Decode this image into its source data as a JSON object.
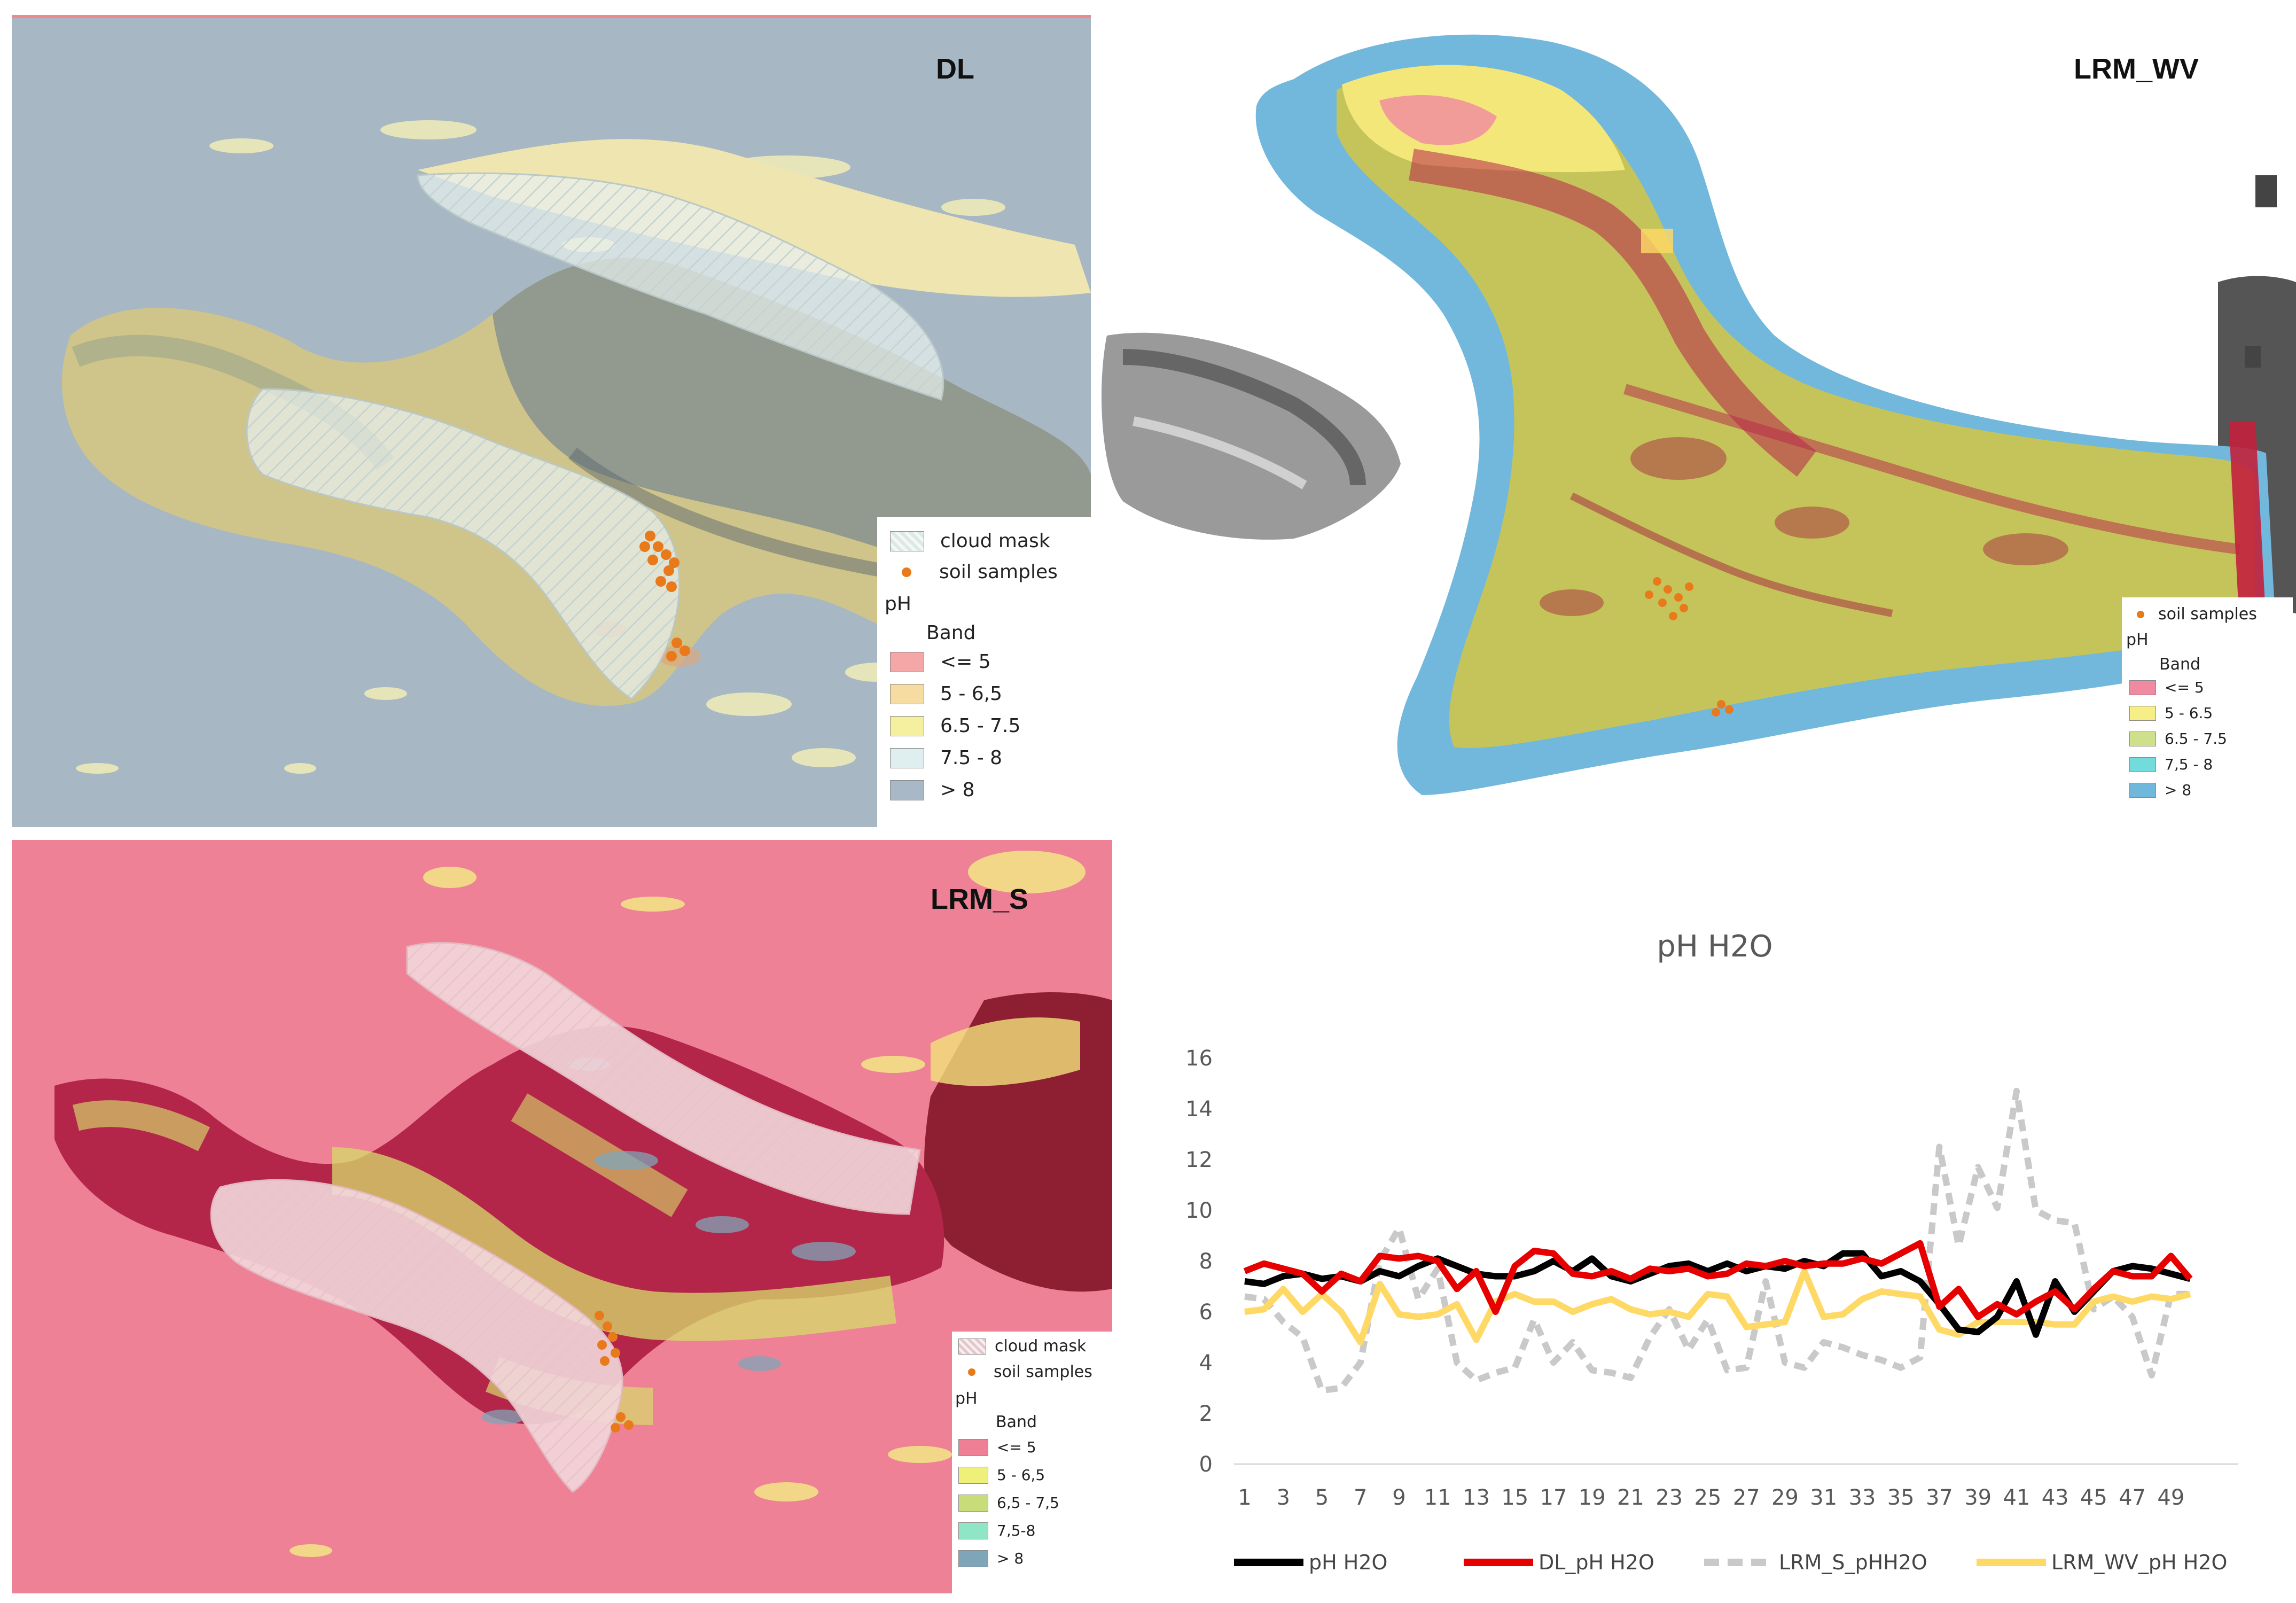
{
  "maps": {
    "dl": {
      "title": "DL",
      "legend": {
        "cloud_mask": "cloud mask",
        "soil_samples": "soil samples",
        "ph": "pH",
        "band": "Band",
        "classes": [
          {
            "label": "<= 5",
            "color": "#f5a6a6"
          },
          {
            "label": "5 - 6,5",
            "color": "#f7dca2"
          },
          {
            "label": "6.5 - 7.5",
            "color": "#f5f0a0"
          },
          {
            "label": "7.5 - 8",
            "color": "#dfeeee"
          },
          {
            "label": "> 8",
            "color": "#a8b8c6"
          }
        ]
      }
    },
    "lrm_wv": {
      "title": "LRM_WV",
      "legend": {
        "soil_samples": "soil samples",
        "ph": "pH",
        "band": "Band",
        "classes": [
          {
            "label": "<= 5",
            "color": "#f08aa0"
          },
          {
            "label": "5 - 6.5",
            "color": "#f6ef88"
          },
          {
            "label": "6.5 - 7.5",
            "color": "#cfe08a"
          },
          {
            "label": "7,5 - 8",
            "color": "#72dbdc"
          },
          {
            "label": "> 8",
            "color": "#6fb8dc"
          }
        ]
      }
    },
    "lrm_s": {
      "title": "LRM_S",
      "legend": {
        "cloud_mask": "cloud mask",
        "soil_samples": "soil samples",
        "ph": "pH",
        "band": "Band",
        "classes": [
          {
            "label": "<= 5",
            "color": "#ee7f94"
          },
          {
            "label": "5 - 6,5",
            "color": "#eef07a"
          },
          {
            "label": "6,5 - 7,5",
            "color": "#c9dc7a"
          },
          {
            "label": "7,5-8",
            "color": "#8fe6c6"
          },
          {
            "label": "> 8",
            "color": "#7fa6b8"
          }
        ]
      }
    }
  },
  "chart_data": {
    "type": "line",
    "title": "pH H2O",
    "x": [
      1,
      2,
      3,
      4,
      5,
      6,
      7,
      8,
      9,
      10,
      11,
      12,
      13,
      14,
      15,
      16,
      17,
      18,
      19,
      20,
      21,
      22,
      23,
      24,
      25,
      26,
      27,
      28,
      29,
      30,
      31,
      32,
      33,
      34,
      35,
      36,
      37,
      38,
      39,
      40,
      41,
      42,
      43,
      44,
      45,
      46,
      47,
      48,
      49,
      50
    ],
    "x_tick_labels": [
      "1",
      "3",
      "5",
      "7",
      "9",
      "11",
      "13",
      "15",
      "17",
      "19",
      "21",
      "23",
      "25",
      "27",
      "29",
      "31",
      "33",
      "35",
      "37",
      "39",
      "41",
      "43",
      "45",
      "47",
      "49"
    ],
    "ylim": [
      0,
      16
    ],
    "y_ticks": [
      "0",
      "2",
      "4",
      "6",
      "8",
      "10",
      "12",
      "14",
      "16"
    ],
    "grid": false,
    "legend_position": "bottom",
    "series": [
      {
        "name": "pH H2O",
        "color": "#000000",
        "dash": "none",
        "values": [
          7.2,
          7.1,
          7.4,
          7.5,
          7.3,
          7.4,
          7.2,
          7.6,
          7.4,
          7.8,
          8.1,
          7.8,
          7.5,
          7.4,
          7.4,
          7.6,
          8.0,
          7.6,
          8.1,
          7.4,
          7.2,
          7.5,
          7.8,
          7.9,
          7.6,
          7.9,
          7.6,
          7.8,
          7.7,
          8.0,
          7.8,
          8.3,
          8.3,
          7.4,
          7.6,
          7.2,
          6.3,
          5.3,
          5.2,
          5.8,
          7.2,
          5.1,
          7.2,
          6.0,
          6.8,
          7.6,
          7.8,
          7.7,
          7.5,
          7.3
        ]
      },
      {
        "name": "DL_pH H2O",
        "color": "#e60000",
        "dash": "none",
        "values": [
          7.6,
          7.9,
          7.7,
          7.5,
          6.8,
          7.5,
          7.2,
          8.2,
          8.1,
          8.2,
          8.0,
          6.9,
          7.6,
          6.0,
          7.8,
          8.4,
          8.3,
          7.5,
          7.4,
          7.6,
          7.3,
          7.7,
          7.6,
          7.7,
          7.4,
          7.5,
          7.9,
          7.8,
          8.0,
          7.8,
          7.9,
          7.9,
          8.1,
          7.9,
          8.3,
          8.7,
          6.2,
          6.9,
          5.8,
          6.3,
          5.9,
          6.4,
          6.8,
          6.1,
          6.9,
          7.6,
          7.4,
          7.4,
          8.2,
          7.3
        ]
      },
      {
        "name": "LRM_S_pHH2O",
        "color": "#c9c9c9",
        "dash": "22,14",
        "values": [
          6.6,
          6.5,
          5.6,
          5.0,
          2.9,
          3.0,
          4.0,
          8.0,
          9.3,
          6.5,
          7.7,
          4.0,
          3.3,
          3.6,
          3.8,
          5.7,
          4.0,
          4.8,
          3.7,
          3.6,
          3.4,
          5.0,
          6.1,
          4.5,
          5.7,
          3.7,
          3.8,
          7.2,
          4.0,
          3.8,
          4.8,
          4.6,
          4.3,
          4.1,
          3.8,
          4.2,
          12.5,
          8.6,
          11.7,
          10.1,
          14.7,
          10.0,
          9.6,
          9.5,
          6.1,
          6.6,
          5.8,
          3.5,
          6.7,
          6.7
        ]
      },
      {
        "name": "LRM_WV_pH H2O",
        "color": "#ffd966",
        "dash": "none",
        "values": [
          6.0,
          6.1,
          6.9,
          6.0,
          6.7,
          6.0,
          4.8,
          7.1,
          5.9,
          5.8,
          5.9,
          6.3,
          4.9,
          6.4,
          6.7,
          6.4,
          6.4,
          6.0,
          6.3,
          6.5,
          6.1,
          5.9,
          6.0,
          5.8,
          6.7,
          6.6,
          5.4,
          5.5,
          5.6,
          7.6,
          5.8,
          5.9,
          6.5,
          6.8,
          6.7,
          6.6,
          5.3,
          5.1,
          5.6,
          5.6,
          5.6,
          5.6,
          5.5,
          5.5,
          6.4,
          6.6,
          6.4,
          6.6,
          6.5,
          6.7
        ]
      }
    ]
  }
}
